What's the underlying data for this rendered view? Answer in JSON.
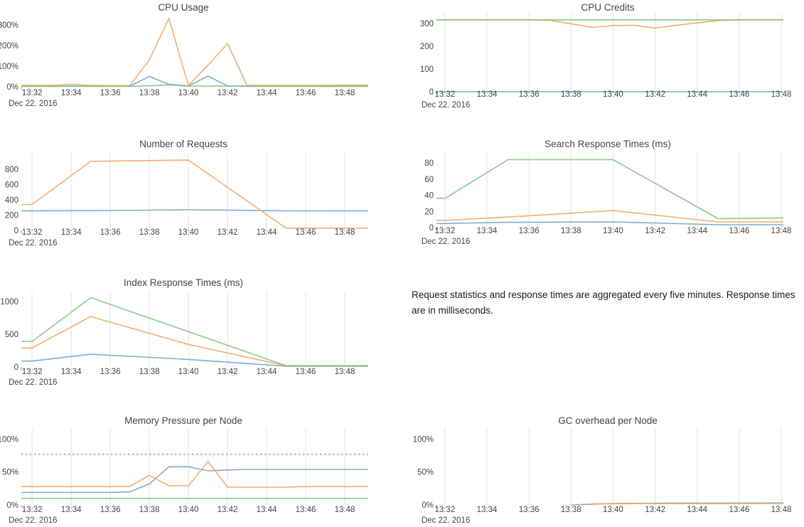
{
  "note": {
    "text": "Request statistics and response times are aggregated every five minutes. Response times are in milliseconds."
  },
  "colors": {
    "blue": "#72a3cd",
    "orange": "#f6a45e",
    "green": "#7ec47f",
    "threshold_red": "#ee959a",
    "gridline": "#e4e4e6",
    "axis_text": "#444444",
    "title_text": "#444444"
  },
  "chart_data": [
    {
      "id": "cpu-usage",
      "type": "line",
      "title": "CPU Usage",
      "date_label": "Dec 22. 2016",
      "x_ticks": [
        "13:32",
        "13:34",
        "13:36",
        "13:38",
        "13:40",
        "13:42",
        "13:44",
        "13:46",
        "13:48"
      ],
      "y_ticks": [
        {
          "v": 0,
          "label": "0%"
        },
        {
          "v": 100,
          "label": "100%"
        },
        {
          "v": 200,
          "label": "200%"
        },
        {
          "v": 300,
          "label": "300%"
        }
      ],
      "ylim": [
        0,
        345
      ],
      "gridlines": false,
      "series": [
        {
          "name": "blue",
          "color": "blue",
          "x": [
            0,
            1,
            2,
            3,
            4,
            5,
            6,
            7,
            8,
            9,
            10,
            11,
            12,
            13,
            14,
            15,
            16
          ],
          "y": [
            3,
            3,
            3,
            3,
            3,
            3,
            50,
            12,
            4,
            52,
            4,
            3,
            3,
            3,
            3,
            3,
            3
          ]
        },
        {
          "name": "green",
          "color": "green",
          "x": [
            0,
            1,
            2,
            3,
            4,
            5,
            6,
            7,
            8,
            9,
            10,
            11,
            12,
            13,
            14,
            15,
            16
          ],
          "y": [
            2,
            2,
            3,
            2,
            2,
            2,
            5,
            9,
            3,
            3,
            3,
            2,
            2,
            2,
            2,
            2,
            2
          ]
        },
        {
          "name": "orange",
          "color": "orange",
          "x": [
            0,
            1,
            2,
            3,
            4,
            5,
            6,
            7,
            8,
            9,
            10,
            11,
            12,
            13,
            14,
            15,
            16
          ],
          "y": [
            7,
            7,
            12,
            7,
            6,
            6,
            130,
            332,
            6,
            105,
            210,
            7,
            7,
            7,
            7,
            7,
            8
          ]
        }
      ]
    },
    {
      "id": "cpu-credits",
      "type": "line",
      "title": "CPU Credits",
      "date_label": "Dec 22. 2016",
      "x_ticks": [
        "13:32",
        "13:34",
        "13:36",
        "13:38",
        "13:40",
        "13:42",
        "13:44",
        "13:46",
        "13:48"
      ],
      "y_ticks": [
        {
          "v": 0,
          "label": "0"
        },
        {
          "v": 100,
          "label": "100"
        },
        {
          "v": 200,
          "label": "200"
        },
        {
          "v": 300,
          "label": "300"
        }
      ],
      "ylim": [
        0,
        322
      ],
      "gridlines": true,
      "series": [
        {
          "name": "blue",
          "color": "blue",
          "x": [
            0,
            16
          ],
          "y": [
            0,
            0
          ]
        },
        {
          "name": "orange",
          "color": "orange",
          "x": [
            0,
            1,
            2,
            3,
            4,
            5,
            6,
            7,
            8,
            9,
            10,
            11,
            12,
            13,
            14,
            15,
            16
          ],
          "y": [
            316,
            316,
            316,
            316,
            316,
            314,
            299,
            283,
            291,
            292,
            280,
            292,
            303,
            313,
            316,
            316,
            316
          ]
        },
        {
          "name": "green",
          "color": "green",
          "x": [
            0,
            16
          ],
          "y": [
            316,
            316
          ]
        }
      ]
    },
    {
      "id": "number-of-requests",
      "type": "line",
      "title": "Number of Requests",
      "date_label": "Dec 22. 2016",
      "x_ticks": [
        "13:32",
        "13:34",
        "13:36",
        "13:38",
        "13:40",
        "13:42",
        "13:44",
        "13:46",
        "13:48"
      ],
      "y_ticks": [
        {
          "v": 0,
          "label": "0"
        },
        {
          "v": 200,
          "label": "200"
        },
        {
          "v": 400,
          "label": "400"
        },
        {
          "v": 600,
          "label": "600"
        },
        {
          "v": 800,
          "label": "800"
        }
      ],
      "ylim": [
        0,
        940
      ],
      "gridlines": true,
      "series": [
        {
          "name": "blue",
          "color": "blue",
          "x": [
            0,
            3,
            6,
            8,
            10,
            13,
            16
          ],
          "y": [
            257,
            259,
            265,
            270,
            266,
            256,
            257
          ]
        },
        {
          "name": "orange",
          "color": "orange",
          "x": [
            0,
            3,
            8,
            13,
            16
          ],
          "y": [
            340,
            905,
            920,
            30,
            30
          ]
        }
      ]
    },
    {
      "id": "search-response-times",
      "type": "line",
      "title": "Search Response Times (ms)",
      "date_label": "Dec 22. 2016",
      "x_ticks": [
        "13:32",
        "13:34",
        "13:36",
        "13:38",
        "13:40",
        "13:42",
        "13:44",
        "13:46",
        "13:48"
      ],
      "y_ticks": [
        {
          "v": 0,
          "label": "0"
        },
        {
          "v": 20,
          "label": "20"
        },
        {
          "v": 40,
          "label": "40"
        },
        {
          "v": 60,
          "label": "60"
        },
        {
          "v": 80,
          "label": "80"
        }
      ],
      "ylim": [
        0,
        88
      ],
      "gridlines": true,
      "series": [
        {
          "name": "blue",
          "color": "blue",
          "x": [
            0,
            3,
            8,
            13,
            16
          ],
          "y": [
            5,
            6.5,
            7,
            3.5,
            3.5
          ]
        },
        {
          "name": "orange",
          "color": "orange",
          "x": [
            0,
            3,
            8,
            13,
            16
          ],
          "y": [
            9,
            13,
            21,
            7,
            7
          ]
        },
        {
          "name": "green",
          "color": "green",
          "x": [
            0,
            3,
            8,
            13,
            16
          ],
          "y": [
            36,
            84,
            84,
            11,
            12
          ]
        }
      ]
    },
    {
      "id": "index-response-times",
      "type": "line",
      "title": "Index Response Times (ms)",
      "date_label": "Dec 22. 2016",
      "x_ticks": [
        "13:32",
        "13:34",
        "13:36",
        "13:38",
        "13:40",
        "13:42",
        "13:44",
        "13:46",
        "13:48"
      ],
      "y_ticks": [
        {
          "v": 0,
          "label": "0"
        },
        {
          "v": 500,
          "label": "500"
        },
        {
          "v": 1000,
          "label": "1000"
        }
      ],
      "ylim": [
        0,
        1065
      ],
      "gridlines": true,
      "series": [
        {
          "name": "blue",
          "color": "blue",
          "x": [
            0,
            3,
            8,
            13,
            16
          ],
          "y": [
            90,
            195,
            115,
            12,
            12
          ]
        },
        {
          "name": "orange",
          "color": "orange",
          "x": [
            0,
            3,
            8,
            13,
            16
          ],
          "y": [
            290,
            770,
            345,
            18,
            18
          ]
        },
        {
          "name": "green",
          "color": "green",
          "x": [
            0,
            3,
            13,
            16
          ],
          "y": [
            390,
            1060,
            20,
            20
          ]
        }
      ]
    },
    {
      "id": "memory-pressure",
      "type": "line",
      "title": "Memory Pressure per Node",
      "date_label": "Dec 22. 2016",
      "x_ticks": [
        "13:32",
        "13:34",
        "13:36",
        "13:38",
        "13:40",
        "13:42",
        "13:44",
        "13:46",
        "13:48"
      ],
      "y_ticks": [
        {
          "v": 0,
          "label": "0%"
        },
        {
          "v": 50,
          "label": "50%"
        },
        {
          "v": 100,
          "label": "100%"
        }
      ],
      "ylim": [
        0,
        108
      ],
      "gridlines": true,
      "threshold": {
        "value": 77,
        "color": "threshold_red"
      },
      "series": [
        {
          "name": "green",
          "color": "green",
          "x": [
            0,
            16
          ],
          "y": [
            10,
            10
          ]
        },
        {
          "name": "blue",
          "color": "blue",
          "x": [
            0,
            1,
            2,
            3,
            4,
            5,
            6,
            7,
            8,
            9,
            10,
            11,
            12,
            13,
            14,
            15,
            16
          ],
          "y": [
            19,
            19,
            19,
            19,
            19,
            20,
            32,
            58,
            58,
            52,
            53,
            54,
            54,
            54,
            54,
            54,
            54
          ]
        },
        {
          "name": "orange",
          "color": "orange",
          "x": [
            0,
            1,
            2,
            3,
            4,
            5,
            6,
            7,
            8,
            9,
            10,
            11,
            12,
            13,
            14,
            15,
            16
          ],
          "y": [
            28,
            28,
            28,
            28,
            28,
            28,
            45,
            29,
            29,
            66,
            27,
            27,
            27,
            27,
            28,
            28,
            28
          ]
        }
      ]
    },
    {
      "id": "gc-overhead",
      "type": "line",
      "title": "GC overhead per Node",
      "date_label": "Dec 22. 2016",
      "x_ticks": [
        "13:32",
        "13:34",
        "13:36",
        "13:38",
        "13:40",
        "13:42",
        "13:44",
        "13:46",
        "13:48"
      ],
      "y_ticks": [
        {
          "v": 0,
          "label": "0%"
        },
        {
          "v": 50,
          "label": "50%"
        },
        {
          "v": 100,
          "label": "100%"
        }
      ],
      "ylim": [
        0,
        108
      ],
      "gridlines": true,
      "series": [
        {
          "name": "blue",
          "color": "blue",
          "x": [
            6,
            7,
            8,
            10,
            13,
            16
          ],
          "y": [
            0,
            1.2,
            2.2,
            2.6,
            2.8,
            3
          ]
        },
        {
          "name": "orange",
          "color": "orange",
          "x": [
            7,
            10,
            13,
            16
          ],
          "y": [
            1.8,
            2,
            2,
            2.2
          ]
        }
      ]
    }
  ]
}
